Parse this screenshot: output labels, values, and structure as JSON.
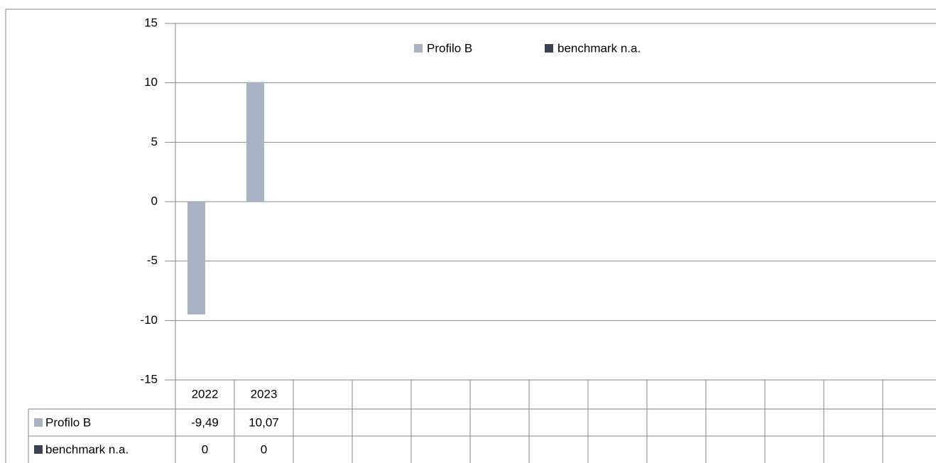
{
  "chart_data": {
    "type": "bar",
    "categories": [
      "2022",
      "2023",
      null,
      null,
      null,
      null,
      null,
      null,
      null,
      null,
      null,
      null,
      null
    ],
    "series": [
      {
        "name": "Profilo B",
        "color": "#a9b3c4",
        "values": [
          -9.49,
          10.07,
          null,
          null,
          null,
          null,
          null,
          null,
          null,
          null,
          null,
          null,
          null
        ],
        "value_labels": [
          "-9,49",
          "10,07",
          null,
          null,
          null,
          null,
          null,
          null,
          null,
          null,
          null,
          null,
          null
        ]
      },
      {
        "name": "benchmark n.a.",
        "color": "#3b4252",
        "values": [
          0,
          0,
          null,
          null,
          null,
          null,
          null,
          null,
          null,
          null,
          null,
          null,
          null
        ]
      }
    ],
    "ylim": [
      -15,
      15
    ],
    "yticks": [
      -15,
      -10,
      -5,
      0,
      5,
      10,
      15
    ],
    "grid": true,
    "legend": "top",
    "data_table": true
  }
}
